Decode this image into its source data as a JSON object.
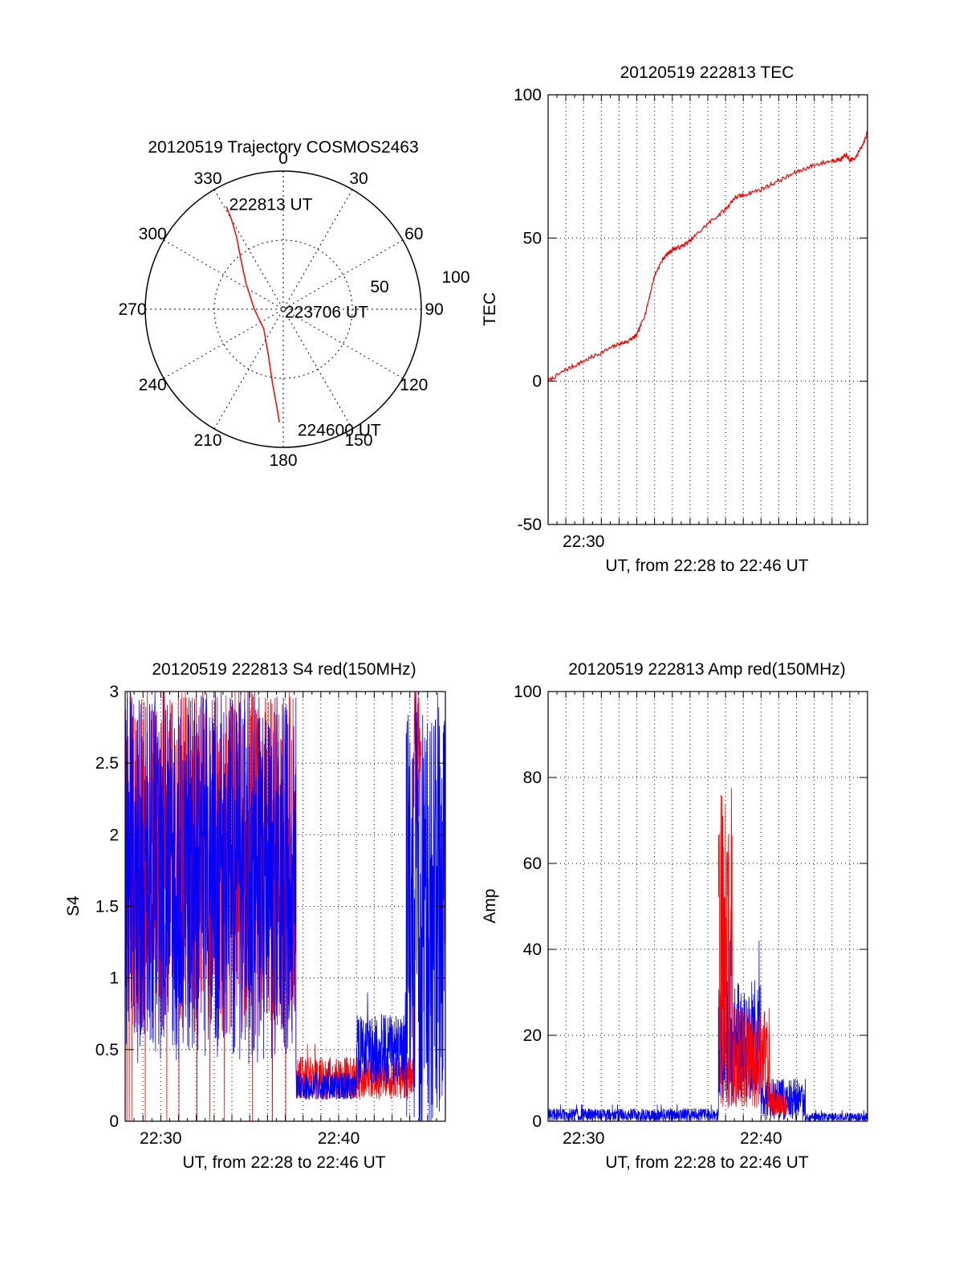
{
  "colors": {
    "red": "#ff0000",
    "blue": "#0000ff",
    "axis": "#000000"
  },
  "chart_data": [
    {
      "type": "polar",
      "title": "20120519 Trajectory COSMOS2463",
      "azimuth_labels": [
        "0",
        "30",
        "60",
        "90",
        "120",
        "150",
        "180",
        "210",
        "240",
        "270",
        "300",
        "330"
      ],
      "radial_labels": [
        "50",
        "100"
      ],
      "radial_range": [
        0,
        100
      ],
      "series": [
        {
          "color": "red",
          "points": [
            {
              "az": 331,
              "zen": 85
            },
            {
              "az": 330,
              "zen": 75
            },
            {
              "az": 327,
              "zen": 62
            },
            {
              "az": 320,
              "zen": 48
            },
            {
              "az": 305,
              "zen": 33
            },
            {
              "az": 270,
              "zen": 21
            },
            {
              "az": 225,
              "zen": 20
            },
            {
              "az": 198,
              "zen": 35
            },
            {
              "az": 188,
              "zen": 55
            },
            {
              "az": 183,
              "zen": 75
            },
            {
              "az": 182,
              "zen": 82
            }
          ]
        }
      ],
      "annotations": [
        {
          "text": "222813 UT",
          "az": 332,
          "zen": 86
        },
        {
          "text": "223706 UT",
          "az": 180,
          "zen": 2
        },
        {
          "text": "224600 UT",
          "az": 174,
          "zen": 88
        }
      ]
    },
    {
      "type": "line",
      "title": "20120519 222813 TEC",
      "xlabel": "UT, from 22:28 to 22:46 UT",
      "ylabel": "TEC",
      "xlim": [
        0,
        18
      ],
      "ylim": [
        -50,
        100
      ],
      "yticks": [
        -50,
        0,
        50,
        100
      ],
      "xticks": [
        {
          "x": 2,
          "label": "22:30"
        }
      ],
      "series": [
        {
          "color": "red",
          "points": [
            [
              0,
              0
            ],
            [
              1,
              4
            ],
            [
              2,
              7
            ],
            [
              3,
              10
            ],
            [
              4,
              13
            ],
            [
              4.5,
              14
            ],
            [
              5,
              16
            ],
            [
              5.5,
              24
            ],
            [
              6,
              37
            ],
            [
              6.5,
              43
            ],
            [
              7,
              46
            ],
            [
              7.5,
              47
            ],
            [
              8,
              49
            ],
            [
              9,
              55
            ],
            [
              10,
              60
            ],
            [
              10.5,
              64
            ],
            [
              11,
              65
            ],
            [
              12,
              67
            ],
            [
              13,
              70
            ],
            [
              14,
              73
            ],
            [
              15,
              75.5
            ],
            [
              16,
              77
            ],
            [
              16.5,
              77.5
            ],
            [
              16.8,
              79
            ],
            [
              17,
              77
            ],
            [
              17.3,
              78
            ],
            [
              17.7,
              82
            ],
            [
              18,
              87
            ]
          ]
        }
      ]
    },
    {
      "type": "line",
      "title": "20120519 222813 S4 red(150MHz)",
      "xlabel": "UT, from 22:28 to 22:46 UT",
      "ylabel": "S4",
      "xlim": [
        0,
        18
      ],
      "ylim": [
        0,
        3
      ],
      "yticks": [
        0,
        0.5,
        1,
        1.5,
        2,
        2.5,
        3
      ],
      "xticks": [
        {
          "x": 2,
          "label": "22:30"
        },
        {
          "x": 12,
          "label": "22:40"
        }
      ],
      "series": [
        {
          "color": "red",
          "segments": [
            {
              "x0": 0,
              "x1": 9.6,
              "base": 1.8,
              "amp": 1.2,
              "floor_spikes": true
            },
            {
              "x0": 9.6,
              "x1": 16.2,
              "base": 0.3,
              "amp": 0.15
            },
            {
              "x0": 16.2,
              "x1": 16.6,
              "base": 2.5,
              "amp": 0.5
            }
          ]
        },
        {
          "color": "blue",
          "segments": [
            {
              "x0": 0,
              "x1": 9.6,
              "base": 1.7,
              "amp": 1.3
            },
            {
              "x0": 9.6,
              "x1": 13.0,
              "base": 0.25,
              "amp": 0.1
            },
            {
              "x0": 13.0,
              "x1": 15.8,
              "base": 0.5,
              "amp": 0.25
            },
            {
              "x0": 15.8,
              "x1": 18,
              "base": 1.5,
              "amp": 1.5,
              "floor_spikes": true
            }
          ]
        }
      ]
    },
    {
      "type": "line",
      "title": "20120519 222813 Amp red(150MHz)",
      "xlabel": "UT, from 22:28 to 22:46 UT",
      "ylabel": "Amp",
      "xlim": [
        0,
        18
      ],
      "ylim": [
        0,
        100
      ],
      "yticks": [
        0,
        20,
        40,
        60,
        80,
        100
      ],
      "xticks": [
        {
          "x": 2,
          "label": "22:30"
        },
        {
          "x": 12,
          "label": "22:40"
        }
      ],
      "series": [
        {
          "color": "blue",
          "segments": [
            {
              "x0": 0,
              "x1": 9.6,
              "base": 1.5,
              "amp": 1.5
            },
            {
              "x0": 9.6,
              "x1": 12.0,
              "base": 18,
              "amp": 15
            },
            {
              "x0": 12.0,
              "x1": 14.5,
              "base": 5,
              "amp": 5
            },
            {
              "x0": 14.5,
              "x1": 18,
              "base": 1,
              "amp": 1
            }
          ]
        },
        {
          "color": "red",
          "segments": [
            {
              "x0": 9.6,
              "x1": 10.4,
              "base": 40,
              "amp": 38
            },
            {
              "x0": 10.4,
              "x1": 12.5,
              "base": 15,
              "amp": 12
            },
            {
              "x0": 12.5,
              "x1": 13.5,
              "base": 4,
              "amp": 3
            }
          ]
        }
      ]
    }
  ]
}
